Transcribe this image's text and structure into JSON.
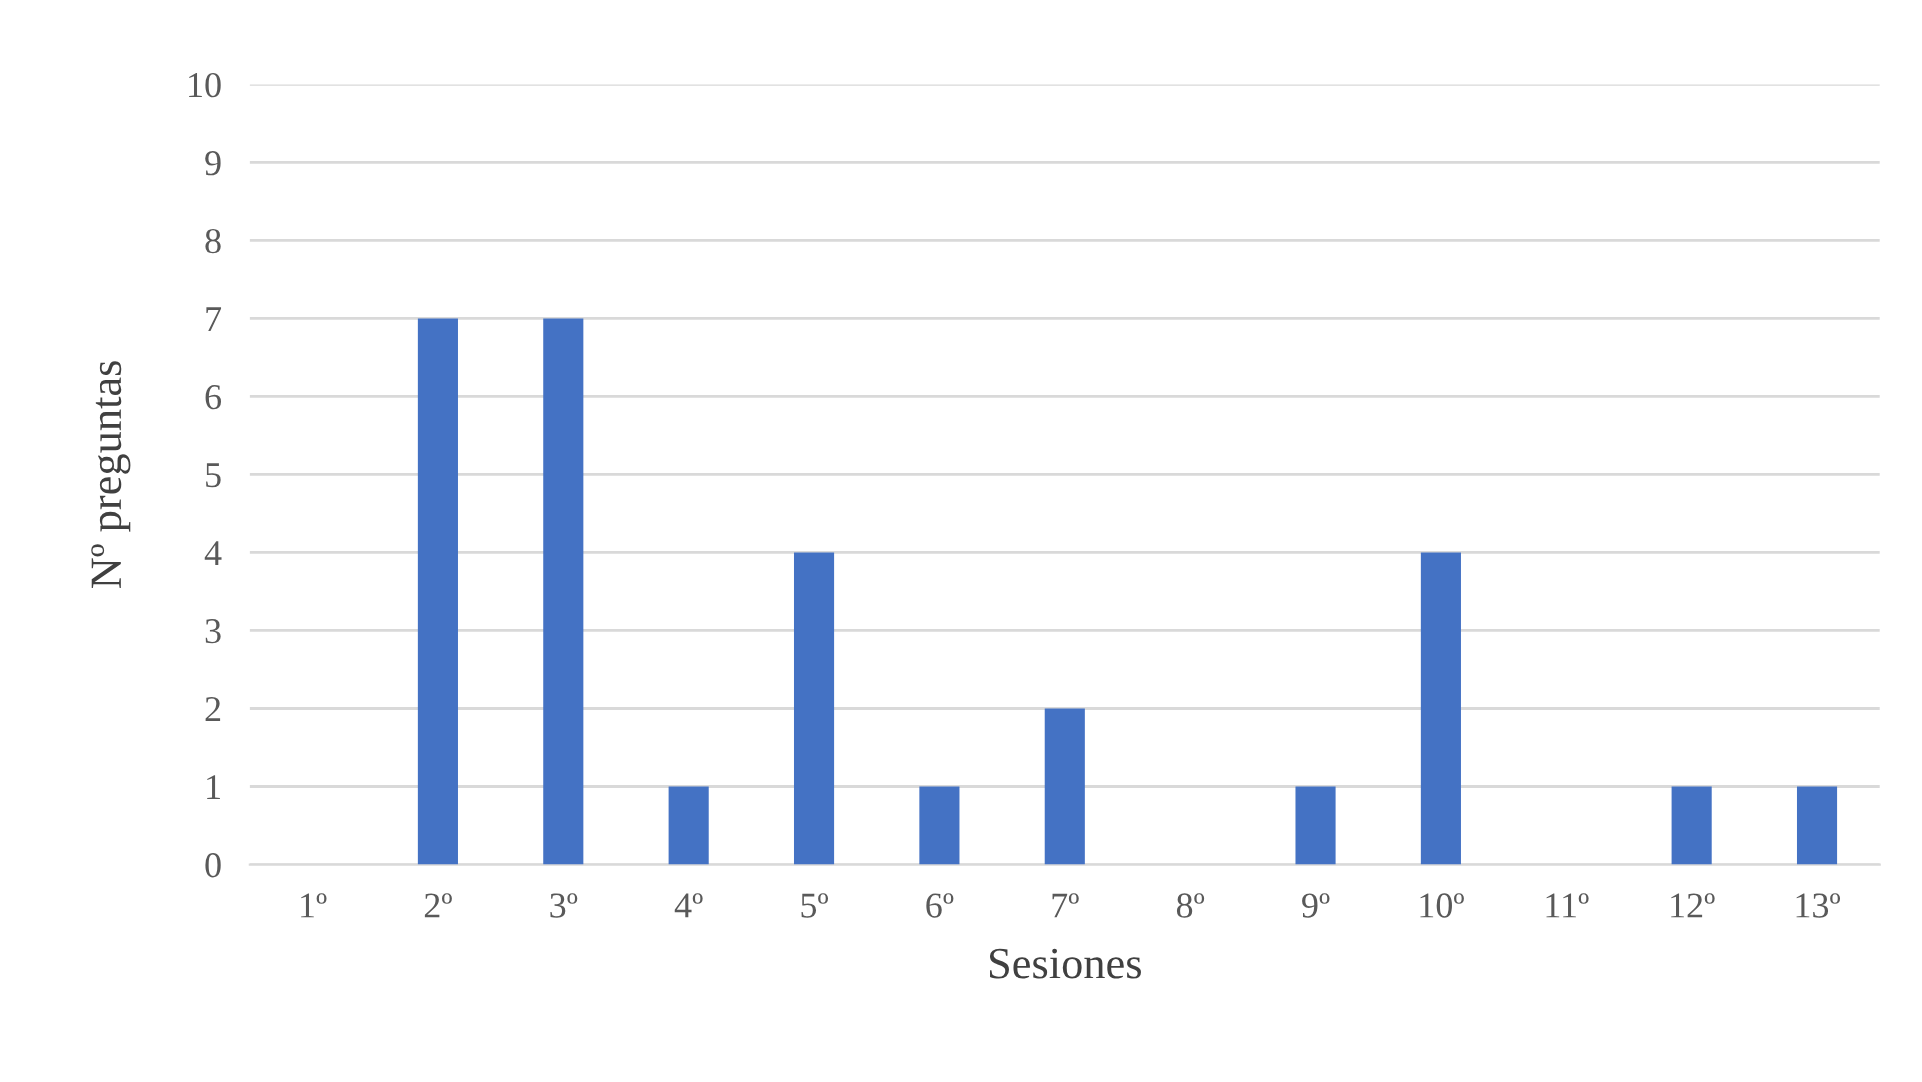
{
  "chart_data": {
    "type": "bar",
    "xlabel": "Sesiones",
    "ylabel": "Nº preguntas",
    "categories": [
      "1º",
      "2º",
      "3º",
      "4º",
      "5º",
      "6º",
      "7º",
      "8º",
      "9º",
      "10º",
      "11º",
      "12º",
      "13º"
    ],
    "values": [
      0,
      7,
      7,
      1,
      4,
      1,
      2,
      0,
      1,
      4,
      0,
      1,
      1
    ],
    "color": "#4472c4",
    "ylim": [
      0,
      10
    ],
    "yticks": [
      0,
      1,
      2,
      3,
      4,
      5,
      6,
      7,
      8,
      9,
      10
    ],
    "grid": "y",
    "legend": false
  }
}
